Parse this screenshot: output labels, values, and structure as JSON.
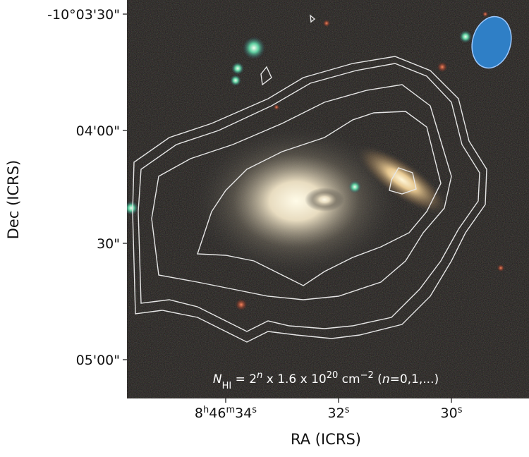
{
  "axes": {
    "x_label": "RA (ICRS)",
    "y_label": "Dec (ICRS)",
    "x_ticks": [
      [
        "8",
        "h",
        "46",
        "m",
        "34",
        "s"
      ],
      [
        "32",
        "s"
      ],
      [
        "30",
        "s"
      ]
    ],
    "y_ticks": [
      "-10°03'30\"",
      "04'00\"",
      "30\"",
      "05'00\""
    ]
  },
  "annotation": {
    "parts": [
      "N",
      "HI",
      " = 2",
      "n",
      " x 1.6 x 10",
      "20",
      " cm",
      "−2",
      " (",
      "n",
      "=0,1,...)"
    ]
  }
}
